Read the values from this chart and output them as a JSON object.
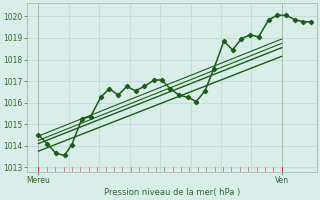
{
  "xlabel": "Pression niveau de la mer( hPa )",
  "background_color": "#daeee9",
  "grid_color": "#b8d8d0",
  "line_color": "#1a5c1a",
  "text_color": "#2a6a2a",
  "border_color": "#aaaaaa",
  "yticks": [
    1013,
    1014,
    1015,
    1016,
    1017,
    1018,
    1019,
    1020
  ],
  "ylim": [
    1012.8,
    1020.6
  ],
  "xlim": [
    0,
    1.0
  ],
  "xtick_labels": [
    "Mereu",
    "Ven"
  ],
  "xtick_positions": [
    0.04,
    0.88
  ],
  "red_tick_color": "#cc3333",
  "n_red_ticks": 29,
  "lines": [
    {
      "x": [
        0.04,
        0.07,
        0.1,
        0.13,
        0.155,
        0.19,
        0.22,
        0.255,
        0.285,
        0.315,
        0.345,
        0.375,
        0.405,
        0.44,
        0.465,
        0.495,
        0.525,
        0.555,
        0.585,
        0.615,
        0.645,
        0.68,
        0.71,
        0.74,
        0.77,
        0.8,
        0.835,
        0.865,
        0.895,
        0.925,
        0.955,
        0.98
      ],
      "y": [
        1014.5,
        1014.1,
        1013.65,
        1013.55,
        1014.05,
        1015.25,
        1015.35,
        1016.25,
        1016.65,
        1016.35,
        1016.75,
        1016.55,
        1016.75,
        1017.05,
        1017.05,
        1016.65,
        1016.35,
        1016.25,
        1016.05,
        1016.55,
        1017.55,
        1018.85,
        1018.45,
        1018.95,
        1019.15,
        1019.05,
        1019.85,
        1020.05,
        1020.05,
        1019.85,
        1019.75,
        1019.75
      ],
      "marker": "D",
      "markersize": 2.2,
      "linewidth": 1.1
    },
    {
      "x": [
        0.04,
        0.88
      ],
      "y": [
        1014.1,
        1018.55
      ],
      "marker": null,
      "linewidth": 1.0,
      "linestyle": "-"
    },
    {
      "x": [
        0.04,
        0.88
      ],
      "y": [
        1013.75,
        1018.15
      ],
      "marker": null,
      "linewidth": 1.0,
      "linestyle": "-"
    },
    {
      "x": [
        0.04,
        0.88
      ],
      "y": [
        1014.45,
        1018.95
      ],
      "marker": null,
      "linewidth": 0.8,
      "linestyle": "-"
    },
    {
      "x": [
        0.04,
        0.88
      ],
      "y": [
        1014.25,
        1018.75
      ],
      "marker": null,
      "linewidth": 0.8,
      "linestyle": "-"
    }
  ]
}
